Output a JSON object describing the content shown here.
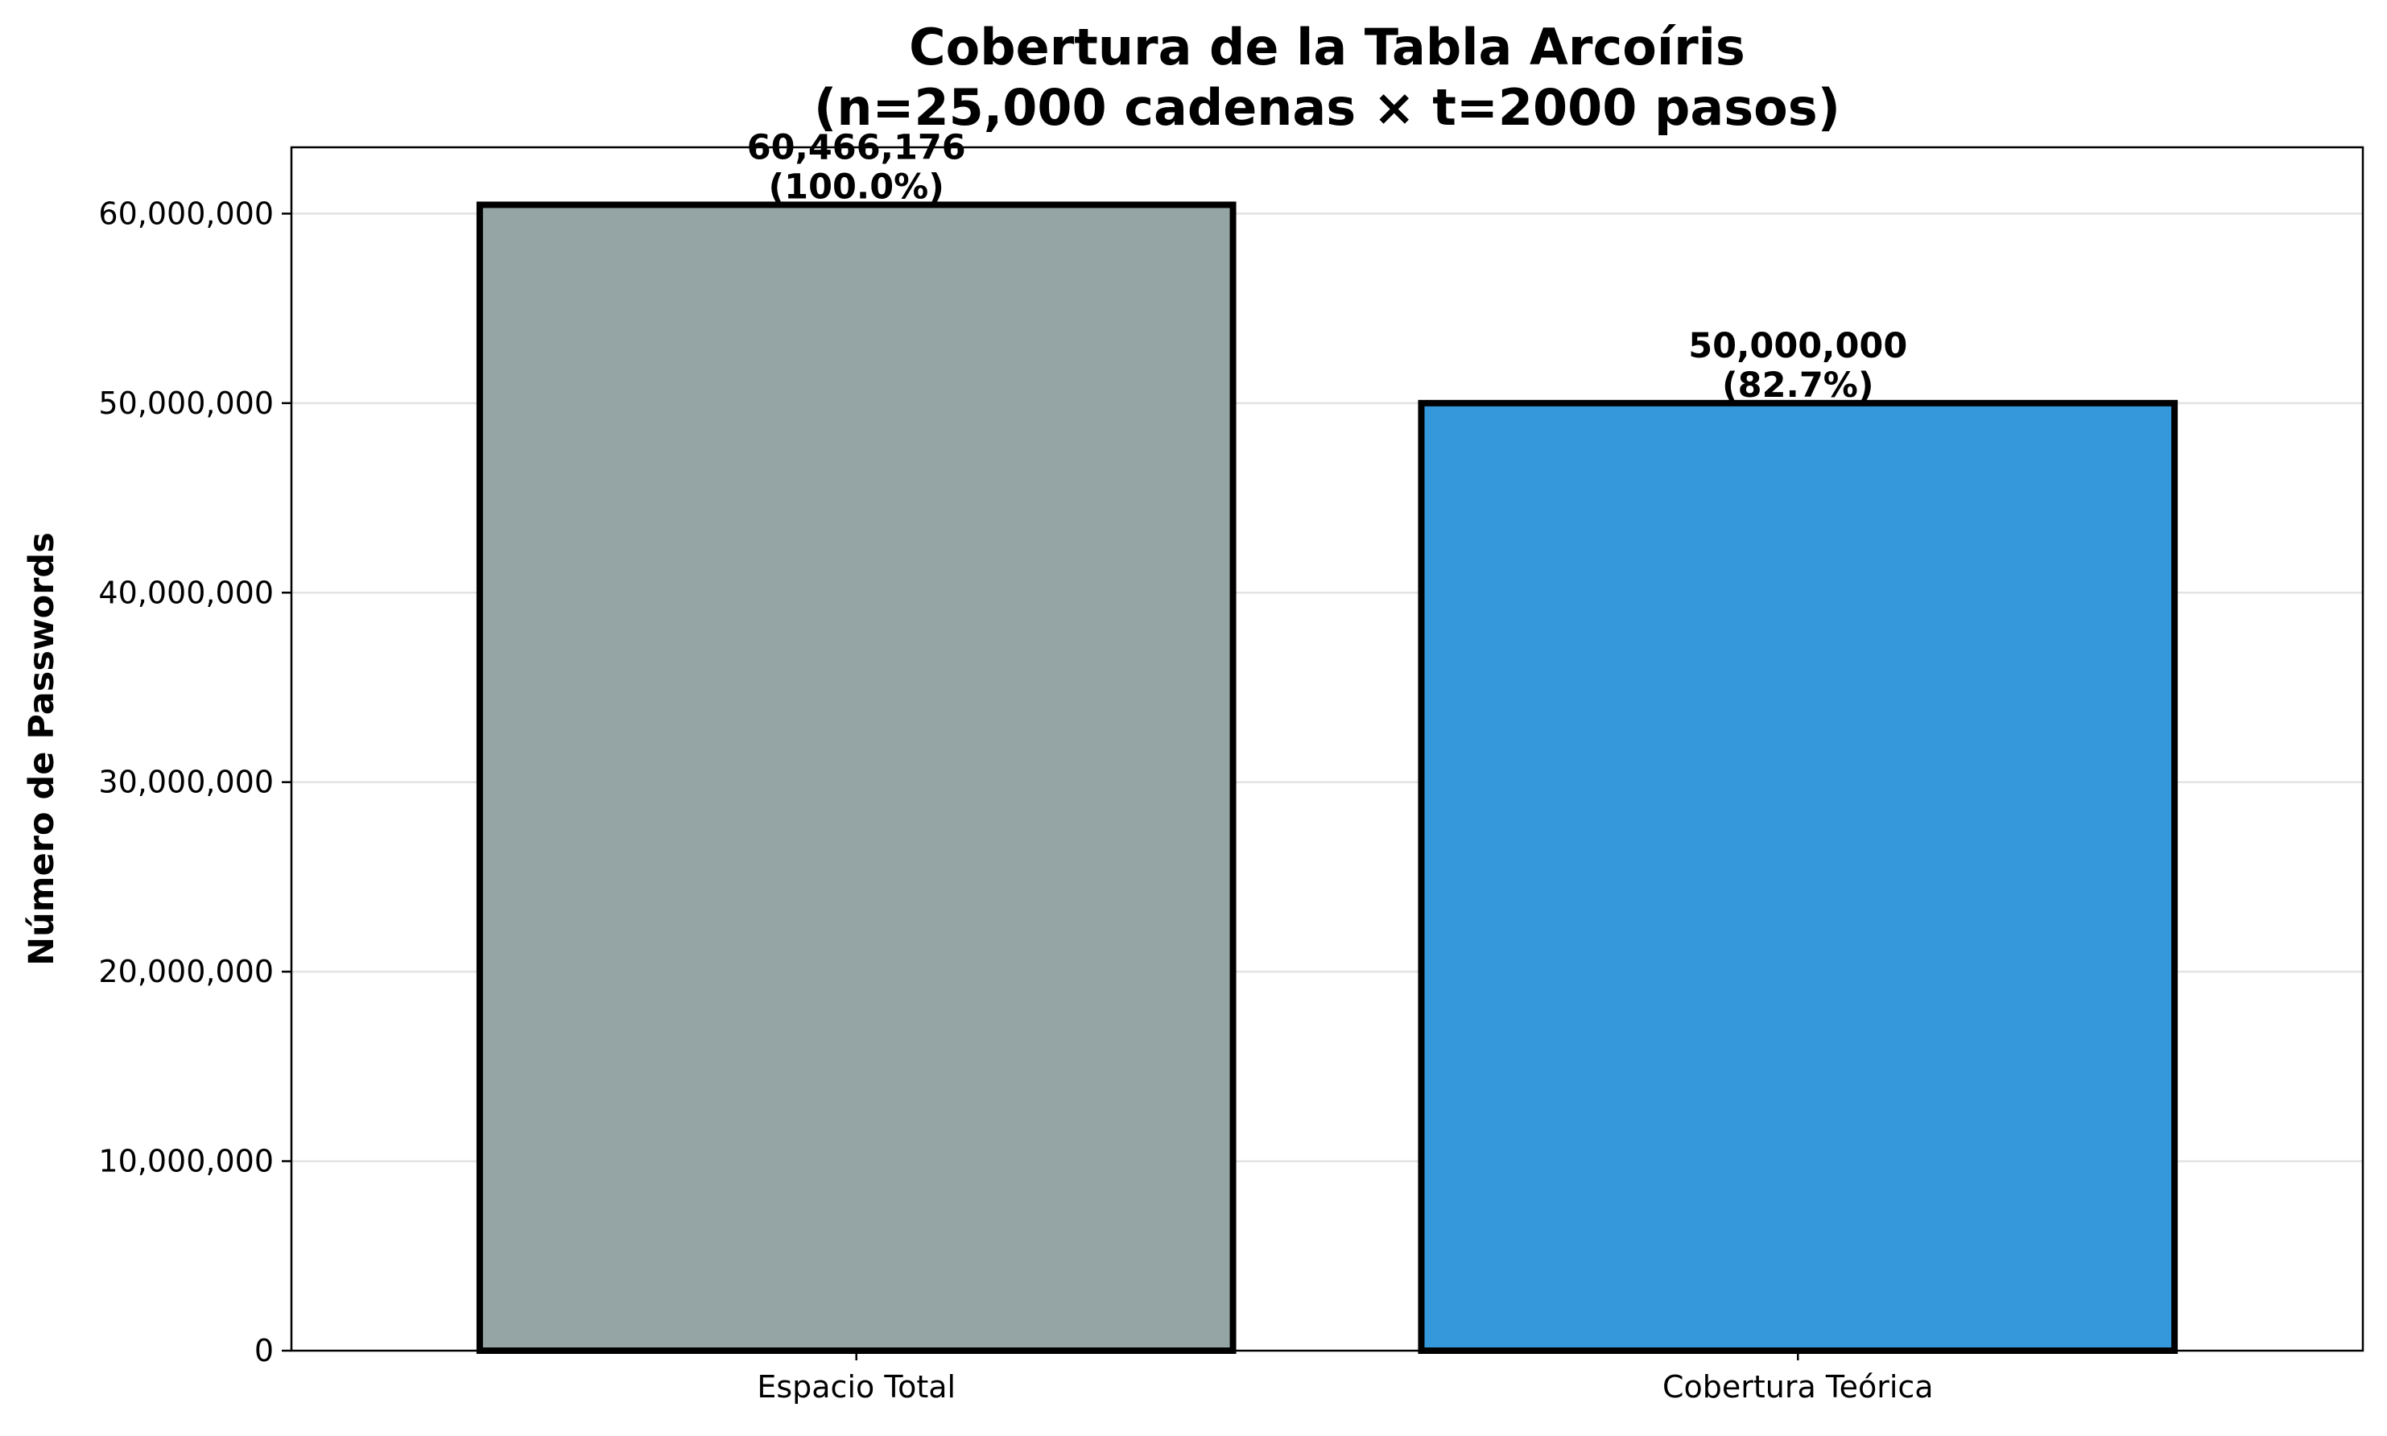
{
  "chart_data": {
    "type": "bar",
    "title": [
      "Cobertura de la Tabla Arcoíris",
      "(n=25,000 cadenas × t=2000 pasos)"
    ],
    "xlabel": "",
    "ylabel": "Número de Passwords",
    "categories": [
      "Espacio Total",
      "Cobertura Teórica"
    ],
    "values": [
      60466176,
      50000000
    ],
    "value_labels": [
      "60,466,176",
      "50,000,000"
    ],
    "percent_labels": [
      "(100.0%)",
      "(82.7%)"
    ],
    "colors": [
      "#95a5a6",
      "#3498db"
    ],
    "ylim": [
      0,
      63500000
    ],
    "yticks": [
      0,
      10000000,
      20000000,
      30000000,
      40000000,
      50000000,
      60000000
    ],
    "ytick_labels": [
      "0",
      "10,000,000",
      "20,000,000",
      "30,000,000",
      "40,000,000",
      "50,000,000",
      "60,000,000"
    ],
    "grid": "y",
    "legend": "none"
  }
}
